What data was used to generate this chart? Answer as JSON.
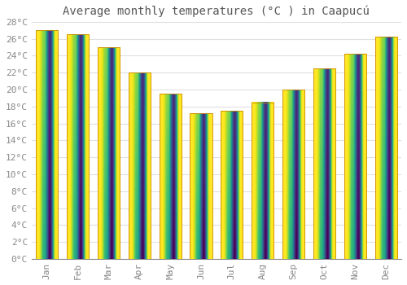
{
  "title": "Average monthly temperatures (°C ) in Caapucú",
  "months": [
    "Jan",
    "Feb",
    "Mar",
    "Apr",
    "May",
    "Jun",
    "Jul",
    "Aug",
    "Sep",
    "Oct",
    "Nov",
    "Dec"
  ],
  "values": [
    27.0,
    26.5,
    25.0,
    22.0,
    19.5,
    17.2,
    17.5,
    18.5,
    20.0,
    22.5,
    24.2,
    26.2
  ],
  "bar_color_top": "#FFD020",
  "bar_color_bottom": "#FFA000",
  "bar_edge_color": "#CC8800",
  "ylim": [
    0,
    28
  ],
  "ytick_step": 2,
  "background_color": "#ffffff",
  "grid_color": "#e0e0e0",
  "title_fontsize": 10,
  "tick_fontsize": 8,
  "bar_width": 0.72
}
